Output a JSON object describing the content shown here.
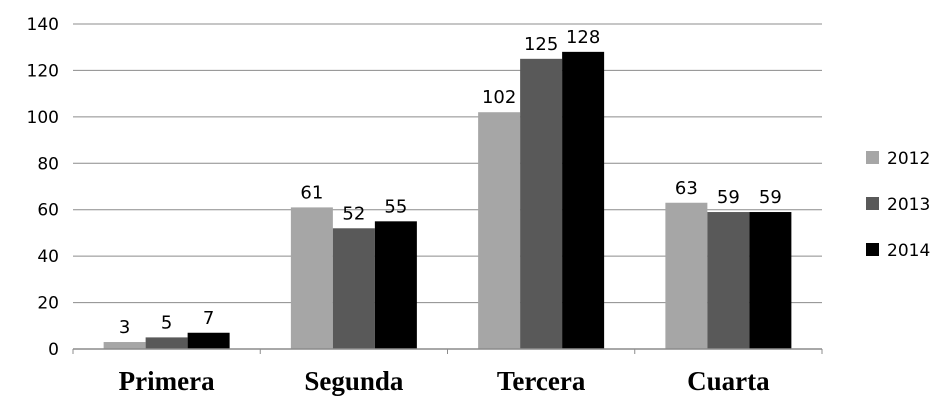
{
  "chart_data": {
    "type": "bar",
    "categories": [
      "Primera",
      "Segunda",
      "Tercera",
      "Cuarta"
    ],
    "series": [
      {
        "name": "2012",
        "values": [
          3,
          61,
          102,
          63
        ],
        "color": "#a6a6a6"
      },
      {
        "name": "2013",
        "values": [
          5,
          52,
          125,
          59
        ],
        "color": "#595959"
      },
      {
        "name": "2014",
        "values": [
          7,
          55,
          128,
          59
        ],
        "color": "#000000"
      }
    ],
    "ylim": [
      0,
      140
    ],
    "yticks": [
      0,
      20,
      40,
      60,
      80,
      100,
      120,
      140
    ],
    "grid": true,
    "legend_position": "right",
    "data_labels": true
  }
}
